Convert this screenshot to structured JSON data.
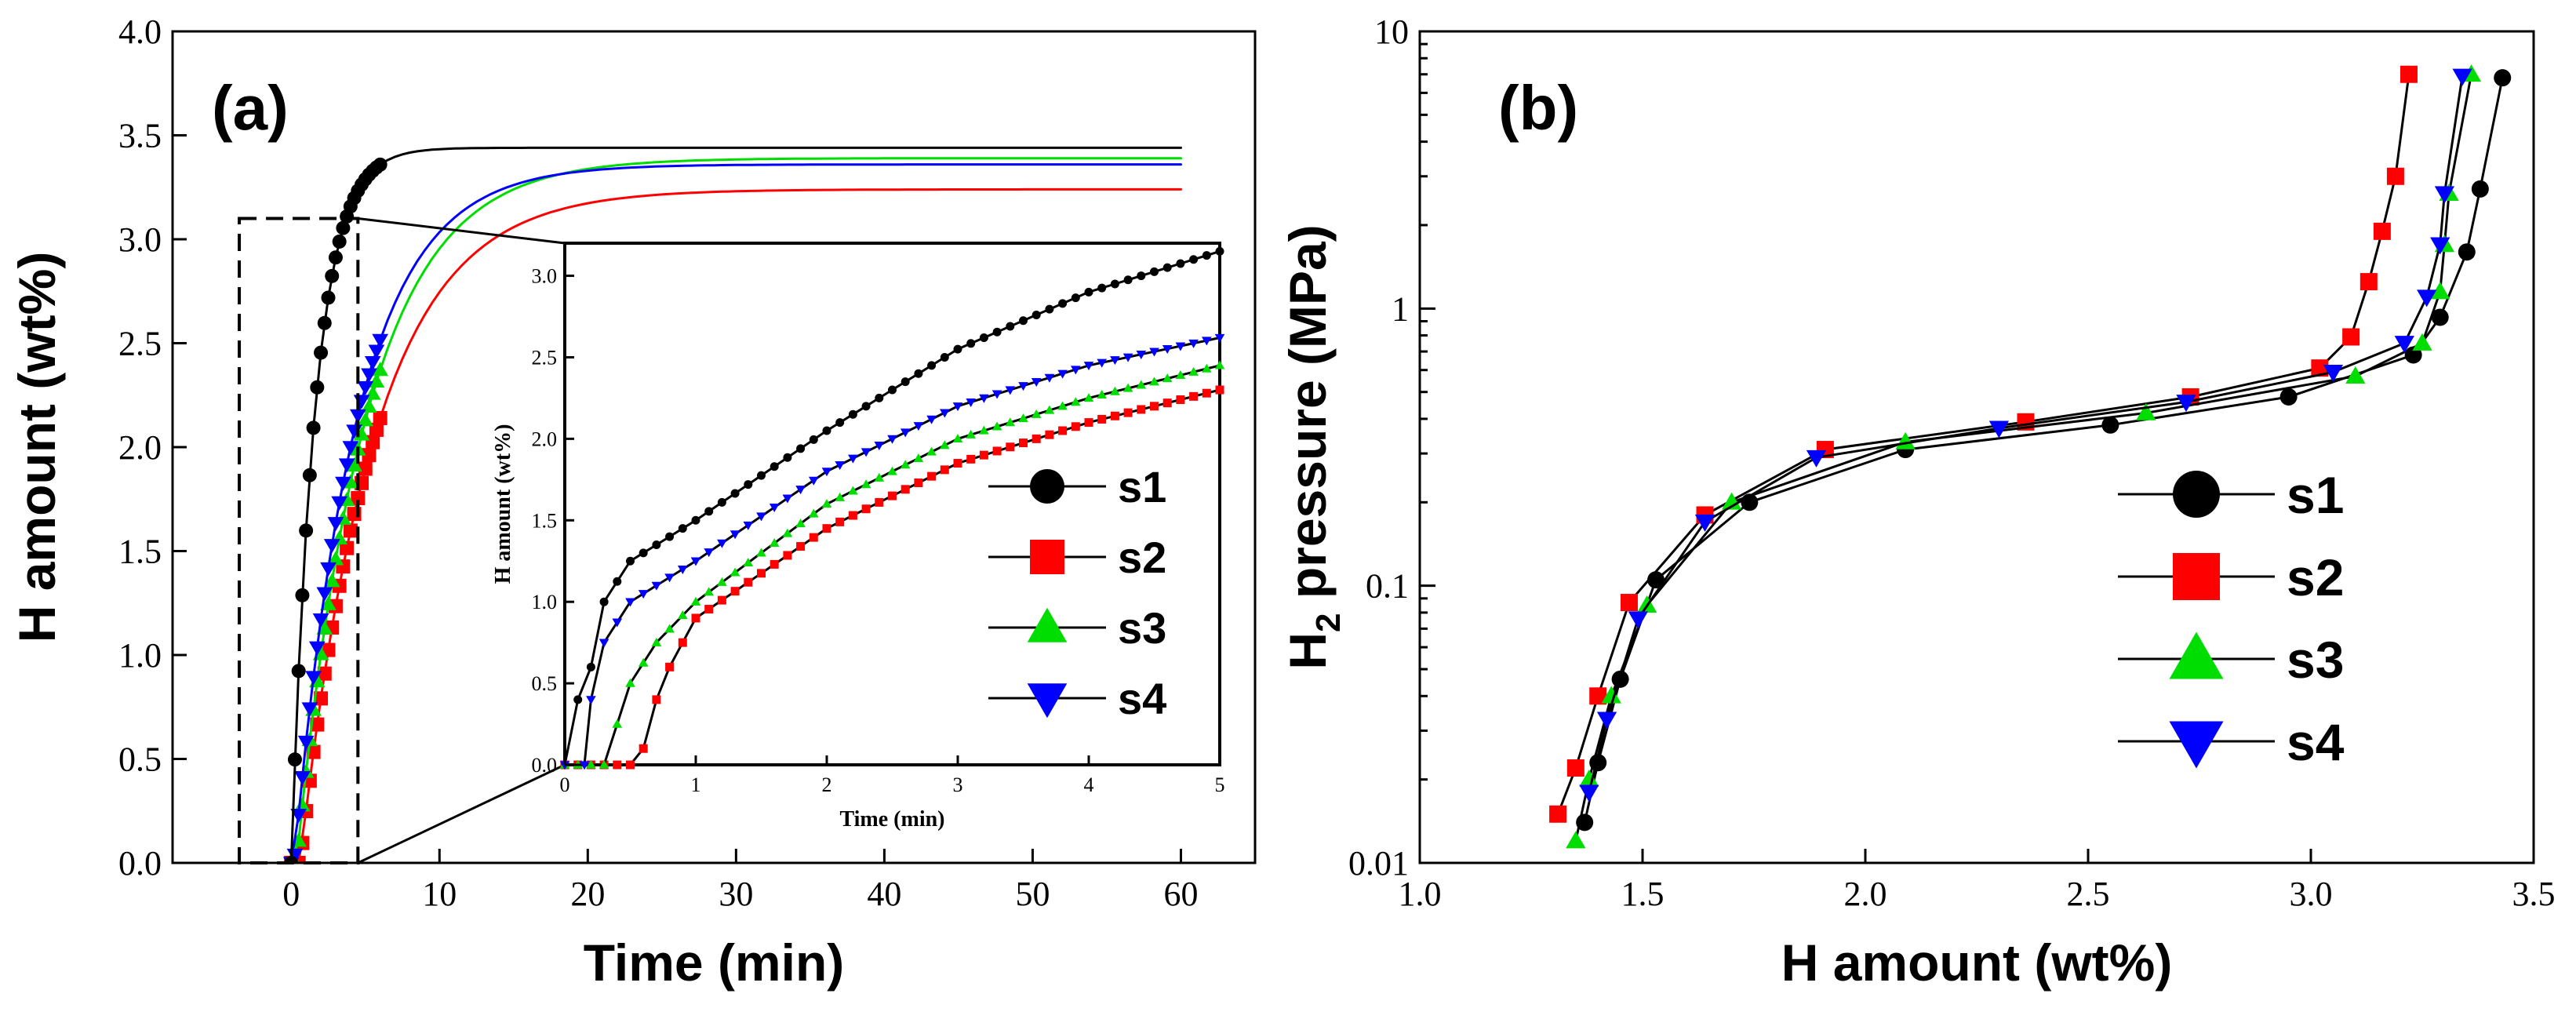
{
  "chart_data": [
    {
      "panel": "(a)",
      "type": "scatter",
      "title": "",
      "xlabel": "Time (min)",
      "ylabel": "H  amount (wt%)",
      "xlim": [
        -8,
        65
      ],
      "ylim": [
        0,
        4.0
      ],
      "xticks": [
        "0",
        "10",
        "20",
        "30",
        "40",
        "50",
        "60"
      ],
      "yticks": [
        "0.0",
        "0.5",
        "1.0",
        "1.5",
        "2.0",
        "2.5",
        "3.0",
        "3.5",
        "4.0"
      ],
      "legend": [
        "s1",
        "s2",
        "s3",
        "s4"
      ],
      "series": [
        {
          "name": "s1",
          "color": "#000000",
          "marker": "circle",
          "t_start": 0.0,
          "plateau": 3.44,
          "tau": 1.6
        },
        {
          "name": "s2",
          "color": "#ff0000",
          "marker": "square",
          "t_start": 0.6,
          "plateau": 3.24,
          "tau": 5.0
        },
        {
          "name": "s3",
          "color": "#00dd00",
          "marker": "triangle-up",
          "t_start": 0.35,
          "plateau": 3.39,
          "tau": 4.7
        },
        {
          "name": "s4",
          "color": "#0000ff",
          "marker": "triangle-down",
          "t_start": 0.2,
          "plateau": 3.36,
          "tau": 4.2
        }
      ],
      "inset": {
        "xlabel": "Time (min)",
        "ylabel": "H  amount (wt%)",
        "xlim": [
          0,
          5
        ],
        "ylim": [
          0,
          3.2
        ],
        "xticks": [
          "0",
          "1",
          "2",
          "3",
          "4",
          "5"
        ],
        "yticks": [
          "0.0",
          "0.5",
          "1.0",
          "1.5",
          "2.0",
          "2.5",
          "3.0"
        ],
        "series": [
          {
            "name": "s1",
            "points": [
              [
                0.0,
                0.0
              ],
              [
                0.1,
                0.4
              ],
              [
                0.2,
                0.6
              ],
              [
                0.3,
                1.0
              ],
              [
                0.5,
                1.25
              ],
              [
                1.0,
                1.5
              ],
              [
                2.0,
                2.05
              ],
              [
                3.0,
                2.55
              ],
              [
                4.0,
                2.9
              ],
              [
                5.0,
                3.15
              ]
            ]
          },
          {
            "name": "s2",
            "points": [
              [
                0.0,
                0.0
              ],
              [
                0.5,
                0.0
              ],
              [
                0.6,
                0.1
              ],
              [
                0.7,
                0.4
              ],
              [
                0.8,
                0.6
              ],
              [
                1.0,
                0.9
              ],
              [
                2.0,
                1.45
              ],
              [
                3.0,
                1.85
              ],
              [
                4.0,
                2.1
              ],
              [
                5.0,
                2.3
              ]
            ]
          },
          {
            "name": "s3",
            "points": [
              [
                0.0,
                0.0
              ],
              [
                0.3,
                0.0
              ],
              [
                0.4,
                0.25
              ],
              [
                0.5,
                0.5
              ],
              [
                0.7,
                0.75
              ],
              [
                1.0,
                1.0
              ],
              [
                2.0,
                1.6
              ],
              [
                3.0,
                2.0
              ],
              [
                4.0,
                2.25
              ],
              [
                5.0,
                2.45
              ]
            ]
          },
          {
            "name": "s4",
            "points": [
              [
                0.0,
                0.0
              ],
              [
                0.15,
                0.0
              ],
              [
                0.2,
                0.4
              ],
              [
                0.3,
                0.75
              ],
              [
                0.5,
                1.0
              ],
              [
                1.0,
                1.25
              ],
              [
                2.0,
                1.8
              ],
              [
                3.0,
                2.2
              ],
              [
                4.0,
                2.45
              ],
              [
                5.0,
                2.62
              ]
            ]
          }
        ]
      }
    },
    {
      "panel": "(b)",
      "type": "line",
      "title": "",
      "xlabel": "H  amount (wt%)",
      "ylabel": "H2 pressure (MPa)",
      "xlim": [
        1.0,
        3.5
      ],
      "ylim": [
        0.01,
        10
      ],
      "yscale": "log",
      "xticks": [
        "1.0",
        "1.5",
        "2.0",
        "2.5",
        "3.0",
        "3.5"
      ],
      "yticks": [
        "0.01",
        "0.1",
        "1",
        "10"
      ],
      "legend": [
        "s1",
        "s2",
        "s3",
        "s4"
      ],
      "series": [
        {
          "name": "s1",
          "color": "#000000",
          "marker": "circle",
          "points": [
            [
              1.37,
              0.014
            ],
            [
              1.4,
              0.023
            ],
            [
              1.45,
              0.046
            ],
            [
              1.53,
              0.105
            ],
            [
              1.74,
              0.2
            ],
            [
              2.09,
              0.31
            ],
            [
              2.55,
              0.38
            ],
            [
              2.95,
              0.48
            ],
            [
              3.23,
              0.68
            ],
            [
              3.29,
              0.93
            ],
            [
              3.35,
              1.6
            ],
            [
              3.38,
              2.7
            ],
            [
              3.43,
              6.8
            ]
          ]
        },
        {
          "name": "s2",
          "color": "#ff0000",
          "marker": "square",
          "points": [
            [
              1.31,
              0.015
            ],
            [
              1.35,
              0.022
            ],
            [
              1.4,
              0.04
            ],
            [
              1.47,
              0.087
            ],
            [
              1.64,
              0.18
            ],
            [
              1.91,
              0.31
            ],
            [
              2.36,
              0.39
            ],
            [
              2.73,
              0.48
            ],
            [
              3.02,
              0.61
            ],
            [
              3.09,
              0.79
            ],
            [
              3.13,
              1.25
            ],
            [
              3.16,
              1.9
            ],
            [
              3.19,
              3.0
            ],
            [
              3.22,
              7.0
            ]
          ]
        },
        {
          "name": "s3",
          "color": "#00dd00",
          "marker": "triangle-up",
          "points": [
            [
              1.35,
              0.012
            ],
            [
              1.38,
              0.02
            ],
            [
              1.43,
              0.04
            ],
            [
              1.51,
              0.085
            ],
            [
              1.7,
              0.2
            ],
            [
              2.09,
              0.33
            ],
            [
              2.63,
              0.42
            ],
            [
              3.1,
              0.57
            ],
            [
              3.25,
              0.75
            ],
            [
              3.29,
              1.15
            ],
            [
              3.3,
              1.7
            ],
            [
              3.31,
              2.6
            ],
            [
              3.36,
              7.0
            ]
          ]
        },
        {
          "name": "s4",
          "color": "#0000ff",
          "marker": "triangle-down",
          "points": [
            [
              1.38,
              0.018
            ],
            [
              1.42,
              0.033
            ],
            [
              1.49,
              0.076
            ],
            [
              1.64,
              0.17
            ],
            [
              1.89,
              0.29
            ],
            [
              2.3,
              0.37
            ],
            [
              2.72,
              0.46
            ],
            [
              3.05,
              0.59
            ],
            [
              3.21,
              0.75
            ],
            [
              3.26,
              1.1
            ],
            [
              3.29,
              1.7
            ],
            [
              3.3,
              2.6
            ],
            [
              3.34,
              6.9
            ]
          ]
        }
      ]
    }
  ]
}
